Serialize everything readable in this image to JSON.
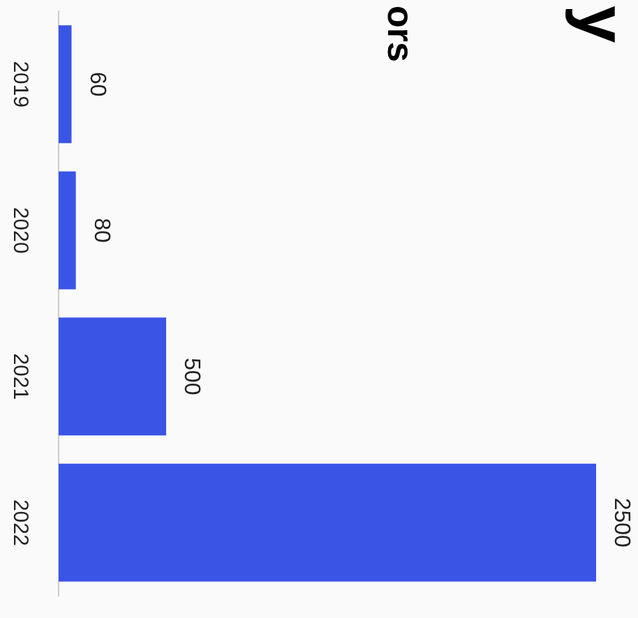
{
  "chart_data": {
    "type": "bar",
    "orientation": "horizontal",
    "title": "y",
    "subtitle": "ors",
    "categories": [
      "2019",
      "2020",
      "2021",
      "2022"
    ],
    "values": [
      60,
      80,
      500,
      2500
    ],
    "color": "#3a55e6",
    "relative": false,
    "data_labels": true,
    "grid": false,
    "legend": false
  }
}
